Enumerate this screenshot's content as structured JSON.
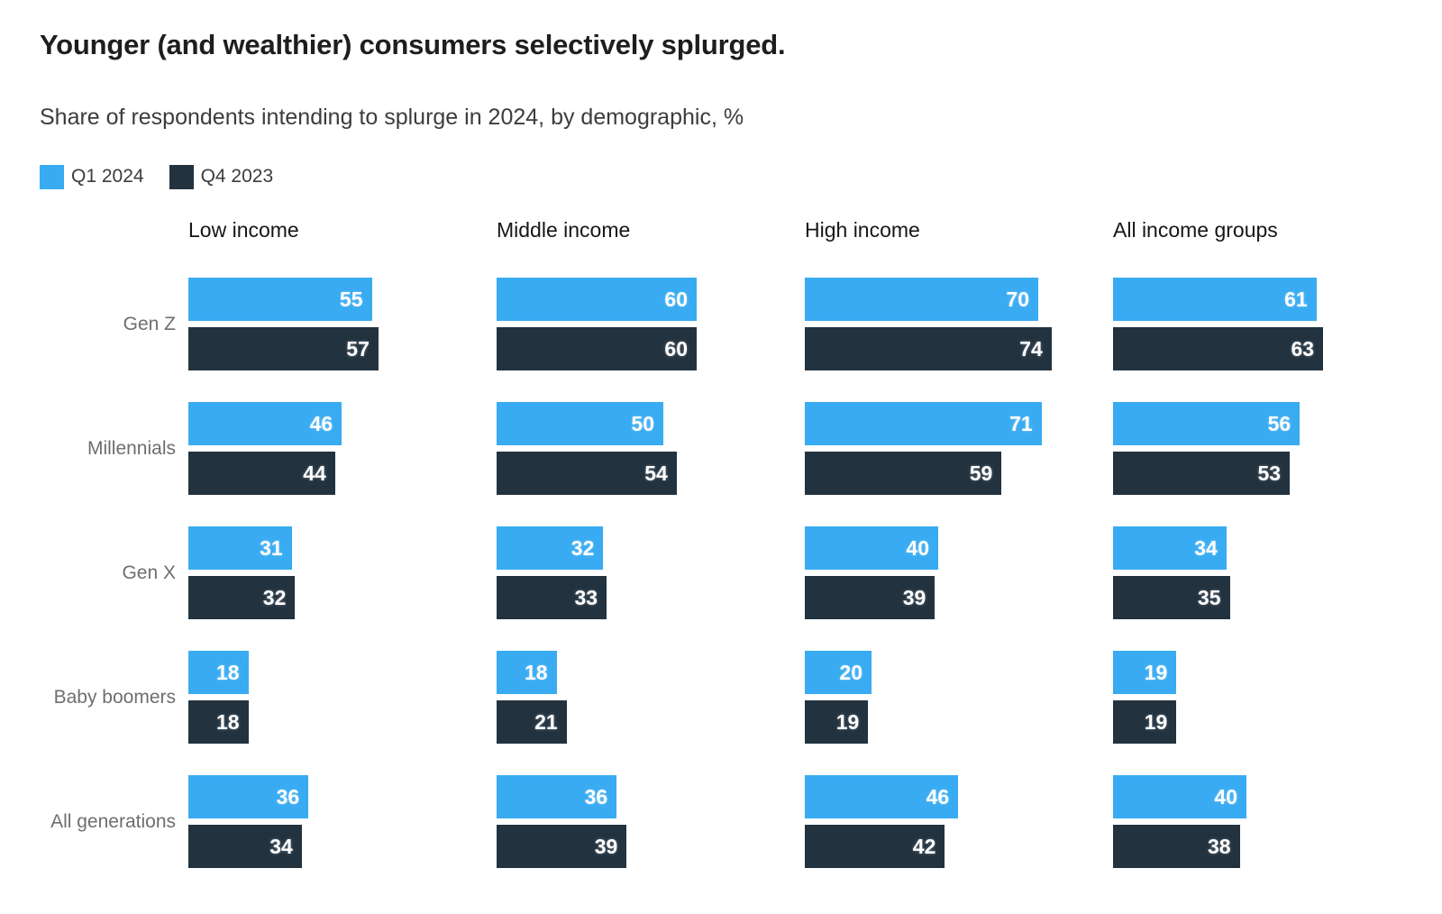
{
  "chart_data": {
    "type": "bar",
    "orientation": "horizontal",
    "title": "Younger (and wealthier) consumers selectively splurged.",
    "subtitle": "Share of respondents intending to splurge in 2024, by demographic, %",
    "unit": "%",
    "value_axis_range": [
      0,
      100
    ],
    "grid": false,
    "axes_shown": false,
    "value_labels": "inside-right",
    "legend_position": "top-left",
    "series": [
      {
        "name": "Q1 2024",
        "color": "#38ABF2"
      },
      {
        "name": "Q4 2023",
        "color": "#22323F"
      }
    ],
    "column_groups": [
      "Low income",
      "Middle income",
      "High income",
      "All income groups"
    ],
    "rows": [
      {
        "label": "Gen Z",
        "values": [
          [
            55,
            57
          ],
          [
            60,
            60
          ],
          [
            70,
            74
          ],
          [
            61,
            63
          ]
        ]
      },
      {
        "label": "Millennials",
        "values": [
          [
            46,
            44
          ],
          [
            50,
            54
          ],
          [
            71,
            59
          ],
          [
            56,
            53
          ]
        ]
      },
      {
        "label": "Gen X",
        "values": [
          [
            31,
            32
          ],
          [
            32,
            33
          ],
          [
            40,
            39
          ],
          [
            34,
            35
          ]
        ]
      },
      {
        "label": "Baby boomers",
        "values": [
          [
            18,
            18
          ],
          [
            18,
            21
          ],
          [
            20,
            19
          ],
          [
            19,
            19
          ]
        ]
      },
      {
        "label": "All generations",
        "values": [
          [
            36,
            34
          ],
          [
            36,
            39
          ],
          [
            46,
            42
          ],
          [
            40,
            38
          ]
        ]
      }
    ]
  }
}
